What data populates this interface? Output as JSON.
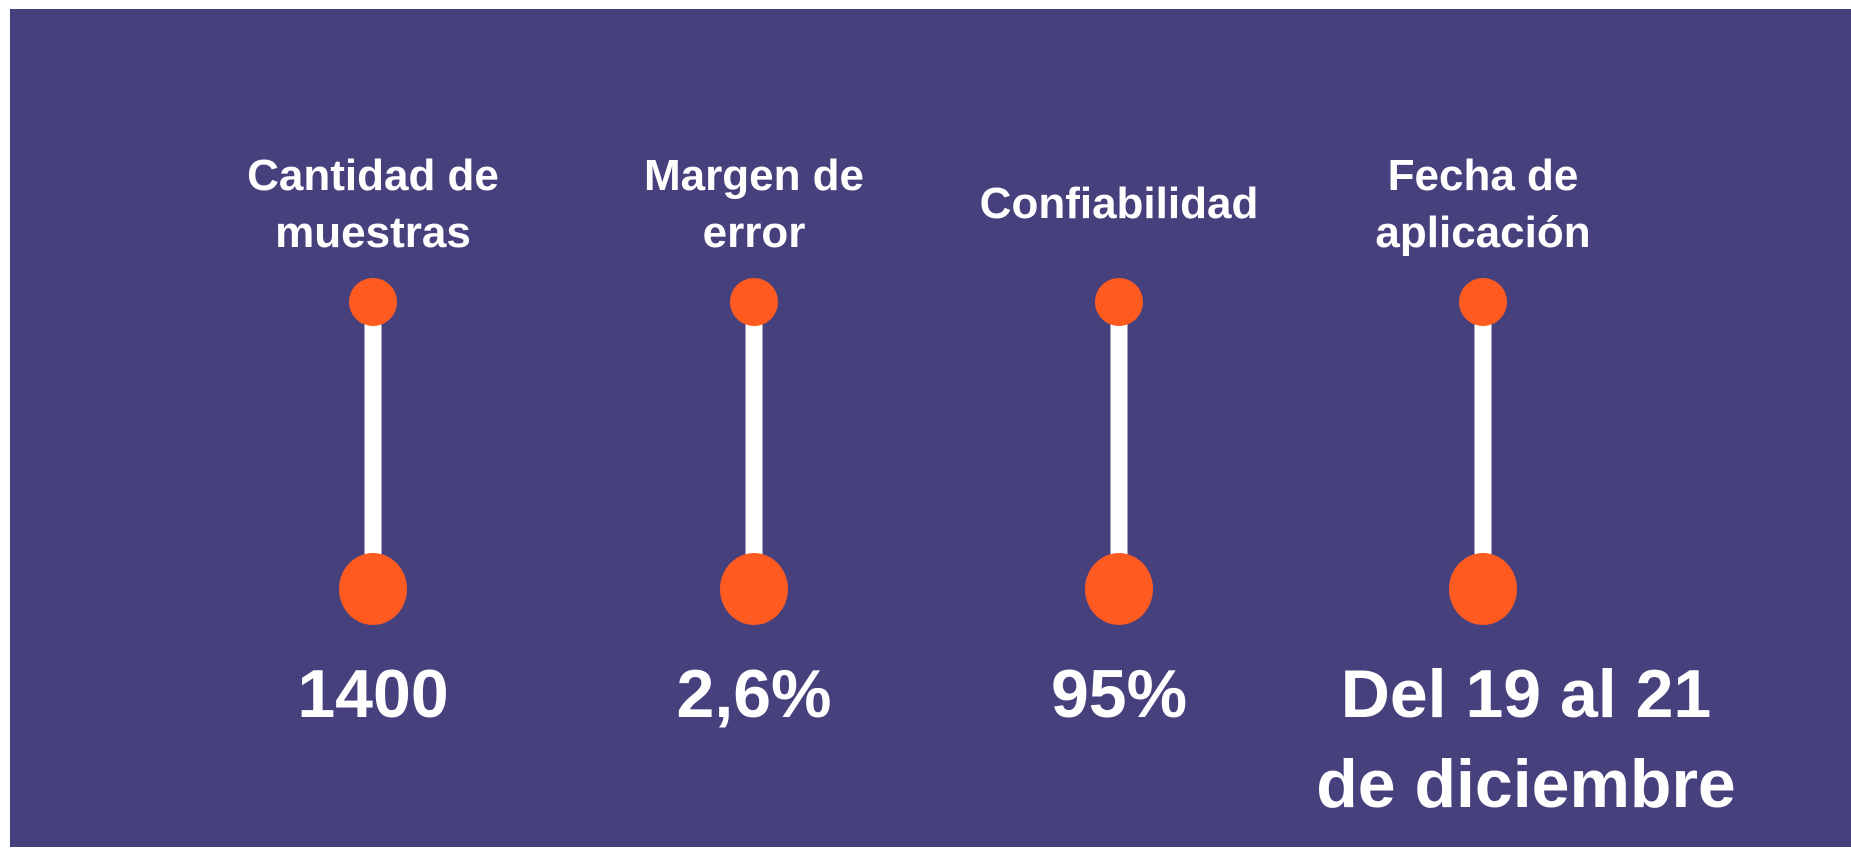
{
  "items": [
    {
      "label": [
        "Cantidad de",
        "muestras"
      ],
      "value": [
        "1400"
      ]
    },
    {
      "label": [
        "Margen de",
        "error"
      ],
      "value": [
        "2,6%"
      ]
    },
    {
      "label": [
        "Confiabilidad"
      ],
      "value": [
        "95%"
      ]
    },
    {
      "label": [
        "Fecha de",
        "aplicación"
      ],
      "value": [
        "Del 19 al 21",
        "de diciembre"
      ]
    }
  ]
}
